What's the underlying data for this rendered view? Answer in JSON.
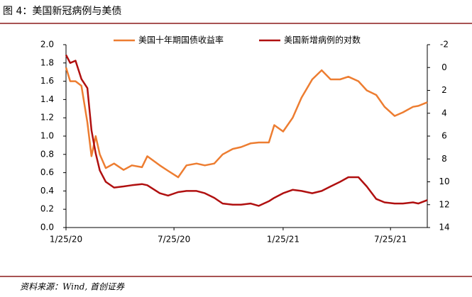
{
  "header": {
    "title": "图 4：美国新冠病例与美债"
  },
  "footer": {
    "source": "资料来源：Wind, 首创证券"
  },
  "chart_data": {
    "type": "line",
    "x": [
      "2020-01-25",
      "2020-02-01",
      "2020-02-10",
      "2020-02-20",
      "2020-03-01",
      "2020-03-08",
      "2020-03-15",
      "2020-03-22",
      "2020-04-01",
      "2020-04-15",
      "2020-05-01",
      "2020-05-15",
      "2020-06-01",
      "2020-06-10",
      "2020-07-01",
      "2020-07-15",
      "2020-08-01",
      "2020-08-15",
      "2020-09-01",
      "2020-09-15",
      "2020-10-01",
      "2020-10-15",
      "2020-11-01",
      "2020-11-15",
      "2020-12-01",
      "2020-12-15",
      "2021-01-01",
      "2021-01-10",
      "2021-01-25",
      "2021-02-10",
      "2021-02-25",
      "2021-03-15",
      "2021-03-31",
      "2021-04-15",
      "2021-05-01",
      "2021-05-15",
      "2021-06-01",
      "2021-06-15",
      "2021-07-01",
      "2021-07-15",
      "2021-08-01",
      "2021-08-15",
      "2021-09-01",
      "2021-09-10",
      "2021-09-25"
    ],
    "xlim": [
      "2020-01-25",
      "2021-09-25"
    ],
    "xticks": [
      {
        "value": "2020-01-25",
        "label": "1/25/20"
      },
      {
        "value": "2020-07-25",
        "label": "7/25/20"
      },
      {
        "value": "2021-01-25",
        "label": "1/25/21"
      },
      {
        "value": "2021-07-25",
        "label": "7/25/21"
      }
    ],
    "ylim": [
      0,
      2
    ],
    "yticks": [
      {
        "value": 0,
        "label": "0.0"
      },
      0.2,
      0.4,
      0.6,
      0.8,
      {
        "value": 1,
        "label": "1.0"
      },
      1.2,
      1.4,
      1.6,
      1.8,
      {
        "value": 2,
        "label": "2.0"
      }
    ],
    "y2lim": [
      -2,
      14
    ],
    "y2_inverted": true,
    "y2ticks": [
      -2,
      0,
      2,
      4,
      6,
      8,
      10,
      12,
      14
    ],
    "legend": "top",
    "series": [
      {
        "name": "美国十年期国债收益率",
        "color": "#ed7d31",
        "values": [
          1.75,
          1.6,
          1.6,
          1.55,
          1.15,
          0.78,
          1.0,
          0.8,
          0.65,
          0.7,
          0.63,
          0.68,
          0.66,
          0.78,
          0.68,
          0.62,
          0.55,
          0.68,
          0.7,
          0.68,
          0.7,
          0.8,
          0.86,
          0.88,
          0.92,
          0.93,
          0.93,
          1.12,
          1.05,
          1.2,
          1.42,
          1.62,
          1.72,
          1.62,
          1.62,
          1.65,
          1.6,
          1.5,
          1.45,
          1.32,
          1.22,
          1.26,
          1.32,
          1.33,
          1.37
        ]
      },
      {
        "name": "美国新增病例的对数",
        "color": "#b01010",
        "axis": "y2",
        "values": [
          -1.1,
          -0.4,
          -0.6,
          1.0,
          1.8,
          5.5,
          7.5,
          9.0,
          10.0,
          10.5,
          10.4,
          10.3,
          10.2,
          10.3,
          11.0,
          11.2,
          10.9,
          10.8,
          10.8,
          11.0,
          11.4,
          11.9,
          12.0,
          12.0,
          11.9,
          12.1,
          11.7,
          11.4,
          11.0,
          10.7,
          10.8,
          11.0,
          10.8,
          10.4,
          10.0,
          9.6,
          9.6,
          10.4,
          11.5,
          11.8,
          11.9,
          11.9,
          11.8,
          11.9,
          11.6
        ]
      }
    ]
  }
}
